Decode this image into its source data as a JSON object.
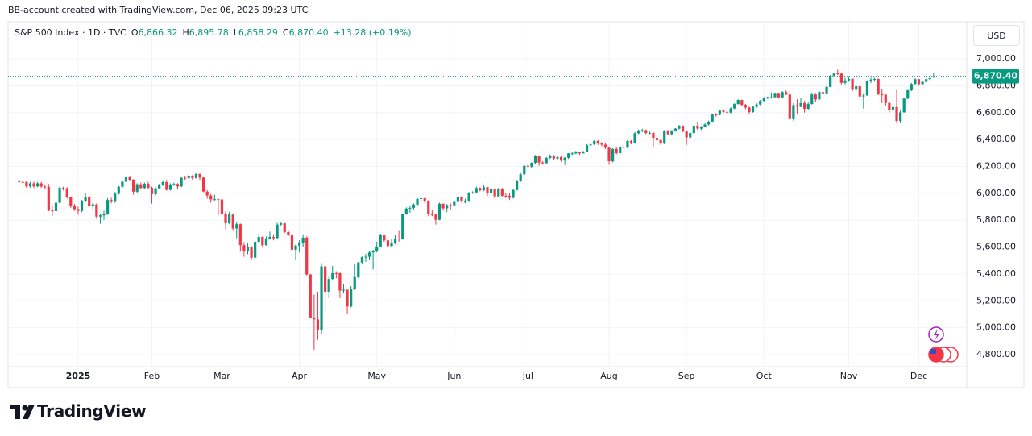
{
  "header": {
    "attribution": "BB-account created with TradingView.com, Dec 06, 2025 09:23 UTC"
  },
  "chart_data": {
    "type": "candlestick",
    "title": "S&P 500 Index · 1D · TVC",
    "ohlc_legend": [
      {
        "label": "O",
        "value": "6,866.32"
      },
      {
        "label": "H",
        "value": "6,895.78"
      },
      {
        "label": "L",
        "value": "6,858.29"
      },
      {
        "label": "C",
        "value": "6,870.40"
      }
    ],
    "change": "+13.28 (+0.19%)",
    "currency": "USD",
    "up_color": "#089981",
    "down_color": "#f23645",
    "grid": true,
    "price_line": {
      "value": 6870.4,
      "label": "6,870.40"
    },
    "ylim": [
      4710,
      7276
    ],
    "yticks": [
      {
        "value": 4800,
        "label": "4,800.00"
      },
      {
        "value": 5000,
        "label": "5,000.00"
      },
      {
        "value": 5200,
        "label": "5,200.00"
      },
      {
        "value": 5400,
        "label": "5,400.00"
      },
      {
        "value": 5600,
        "label": "5,600.00"
      },
      {
        "value": 5800,
        "label": "5,800.00"
      },
      {
        "value": 6000,
        "label": "6,000.00"
      },
      {
        "value": 6200,
        "label": "6,200.00"
      },
      {
        "value": 6400,
        "label": "6,400.00"
      },
      {
        "value": 6600,
        "label": "6,600.00"
      },
      {
        "value": 6800,
        "label": "6,800.00"
      },
      {
        "value": 7000,
        "label": "7,000.00"
      }
    ],
    "xlim": [
      -3,
      257
    ],
    "xticks": [
      {
        "value": 16,
        "label": "2025"
      },
      {
        "value": 36,
        "label": "Feb"
      },
      {
        "value": 55,
        "label": "Mar"
      },
      {
        "value": 76,
        "label": "Apr"
      },
      {
        "value": 97,
        "label": "May"
      },
      {
        "value": 118,
        "label": "Jun"
      },
      {
        "value": 138,
        "label": "Jul"
      },
      {
        "value": 160,
        "label": "Aug"
      },
      {
        "value": 181,
        "label": "Sep"
      },
      {
        "value": 202,
        "label": "Oct"
      },
      {
        "value": 225,
        "label": "Nov"
      },
      {
        "value": 244,
        "label": "Dec"
      }
    ],
    "open": [
      6090,
      6085,
      6084,
      6051,
      6074,
      6051,
      6074,
      6050,
      6047,
      5872,
      5867,
      5930,
      6040,
      6037,
      5970,
      5906,
      5882,
      5869,
      5942,
      5975,
      5909,
      5918,
      5827,
      5836,
      5843,
      5950,
      5937,
      5997,
      6049,
      6086,
      6119,
      6101,
      6012,
      6067,
      6039,
      6071,
      6040,
      5994,
      6037,
      6061,
      6083,
      6026,
      6066,
      6069,
      6051,
      6115,
      6114,
      6129,
      6114,
      6144,
      6117,
      6013,
      5983,
      5955,
      5956,
      5954,
      5849,
      5778,
      5842,
      5738,
      5770,
      5614,
      5572,
      5599,
      5521,
      5639,
      5675,
      5614,
      5662,
      5675,
      5667,
      5767,
      5776,
      5712,
      5693,
      5580,
      5611,
      5633,
      5670,
      5396,
      5074,
      5062,
      4982,
      5456,
      5268,
      5363,
      5406,
      5405,
      5276,
      5282,
      5158,
      5287,
      5376,
      5485,
      5525,
      5528,
      5560,
      5569,
      5604,
      5687,
      5650,
      5607,
      5631,
      5664,
      5660,
      5844,
      5886,
      5892,
      5916,
      5958,
      5963,
      5940,
      5844,
      5842,
      5803,
      5922,
      5888,
      5912,
      5911,
      5936,
      5970,
      5939,
      5939,
      6000,
      6006,
      6039,
      6022,
      6045,
      6001,
      6033,
      5977,
      6033,
      5982,
      5981,
      5967,
      6025,
      6092,
      6141,
      6205,
      6198,
      6227,
      6279,
      6229,
      6225,
      6263,
      6280,
      6259,
      6269,
      6244,
      6264,
      6297,
      6297,
      6305,
      6297,
      6309,
      6358,
      6363,
      6389,
      6370,
      6362,
      6339,
      6238,
      6330,
      6299,
      6345,
      6340,
      6389,
      6374,
      6446,
      6466,
      6469,
      6449,
      6449,
      6412,
      6395,
      6370,
      6467,
      6439,
      6466,
      6481,
      6502,
      6460,
      6415,
      6448,
      6502,
      6481,
      6495,
      6512,
      6532,
      6587,
      6584,
      6615,
      6606,
      6600,
      6631,
      6664,
      6694,
      6657,
      6638,
      6604,
      6644,
      6661,
      6688,
      6711,
      6715,
      6715,
      6740,
      6714,
      6753,
      6735,
      6552,
      6655,
      6644,
      6671,
      6629,
      6664,
      6735,
      6699,
      6753,
      6738,
      6791,
      6875,
      6891,
      6890,
      6822,
      6840,
      6851,
      6771,
      6796,
      6720,
      6728,
      6832,
      6846,
      6850,
      6737,
      6734,
      6672,
      6617,
      6642,
      6538,
      6602,
      6705,
      6766,
      6813,
      6849,
      6812,
      6829,
      6849,
      6866.32
    ],
    "high": [
      6100,
      6096,
      6095,
      6085,
      6086,
      6084,
      6085,
      6066,
      6070,
      5910,
      5940,
      6050,
      6049,
      6045,
      5975,
      5920,
      5900,
      5950,
      6000,
      5990,
      5930,
      5925,
      5850,
      5871,
      5964,
      5966,
      6010,
      6055,
      6100,
      6128,
      6125,
      6105,
      6075,
      6081,
      6080,
      6085,
      6050,
      6045,
      6070,
      6090,
      6100,
      6075,
      6080,
      6075,
      6120,
      6128,
      6140,
      6135,
      6147,
      6147,
      6120,
      6025,
      5995,
      5990,
      5960,
      5986,
      5866,
      5862,
      5845,
      5785,
      5775,
      5636,
      5630,
      5605,
      5646,
      5700,
      5680,
      5680,
      5715,
      5695,
      5780,
      5786,
      5780,
      5720,
      5700,
      5620,
      5650,
      5695,
      5680,
      5400,
      5246,
      5268,
      5481,
      5460,
      5380,
      5460,
      5420,
      5410,
      5328,
      5285,
      5310,
      5470,
      5490,
      5530,
      5550,
      5570,
      5580,
      5640,
      5700,
      5690,
      5660,
      5660,
      5690,
      5720,
      5850,
      5895,
      5907,
      5925,
      5965,
      5970,
      5968,
      5950,
      5880,
      5845,
      5930,
      5925,
      5920,
      5925,
      5945,
      5975,
      5980,
      5960,
      6010,
      6015,
      6050,
      6045,
      6060,
      6048,
      6040,
      6035,
      6040,
      6040,
      6000,
      6000,
      6035,
      6100,
      6150,
      6210,
      6215,
      6230,
      6285,
      6280,
      6240,
      6270,
      6290,
      6285,
      6275,
      6275,
      6270,
      6300,
      6305,
      6315,
      6310,
      6315,
      6365,
      6370,
      6395,
      6395,
      6380,
      6375,
      6345,
      6335,
      6345,
      6355,
      6360,
      6395,
      6395,
      6455,
      6475,
      6480,
      6475,
      6460,
      6455,
      6420,
      6400,
      6470,
      6470,
      6470,
      6485,
      6508,
      6505,
      6465,
      6455,
      6505,
      6532,
      6500,
      6520,
      6540,
      6590,
      6595,
      6620,
      6625,
      6625,
      6640,
      6670,
      6700,
      6697,
      6665,
      6645,
      6650,
      6670,
      6695,
      6715,
      6720,
      6750,
      6745,
      6745,
      6760,
      6765,
      6765,
      6670,
      6700,
      6710,
      6690,
      6680,
      6745,
      6740,
      6760,
      6770,
      6800,
      6880,
      6895,
      6920,
      6895,
      6860,
      6870,
      6855,
      6805,
      6800,
      6740,
      6840,
      6860,
      6860,
      6855,
      6775,
      6735,
      6680,
      6650,
      6770,
      6620,
      6710,
      6770,
      6820,
      6855,
      6850,
      6835,
      6860,
      6870,
      6895.78
    ],
    "low": [
      6075,
      6072,
      6040,
      6042,
      6040,
      6045,
      6040,
      6035,
      5866,
      5832,
      5860,
      5925,
      6020,
      5960,
      5890,
      5870,
      5840,
      5860,
      5935,
      5896,
      5874,
      5810,
      5773,
      5803,
      5840,
      5925,
      5930,
      5990,
      6040,
      6080,
      6090,
      5990,
      6005,
      6030,
      6030,
      6030,
      5923,
      5985,
      6030,
      6055,
      6020,
      6020,
      6055,
      6030,
      6045,
      6100,
      6105,
      6100,
      6110,
      6100,
      6008,
      5960,
      5930,
      5942,
      5837,
      5820,
      5732,
      5770,
      5720,
      5666,
      5565,
      5528,
      5546,
      5505,
      5518,
      5630,
      5597,
      5610,
      5655,
      5650,
      5660,
      5760,
      5705,
      5680,
      5575,
      5500,
      5560,
      5600,
      5390,
      5070,
      4835,
      4910,
      4948,
      5115,
      5220,
      5355,
      5368,
      5220,
      5255,
      5101,
      5150,
      5280,
      5370,
      5470,
      5490,
      5505,
      5433,
      5560,
      5600,
      5640,
      5590,
      5600,
      5620,
      5640,
      5655,
      5840,
      5855,
      5880,
      5905,
      5930,
      5925,
      5830,
      5830,
      5767,
      5800,
      5870,
      5860,
      5875,
      5900,
      5930,
      5930,
      5925,
      5935,
      5995,
      6000,
      6015,
      6015,
      5980,
      5990,
      5960,
      5970,
      5975,
      5965,
      5950,
      5960,
      6020,
      6085,
      6135,
      6185,
      6190,
      6220,
      6205,
      6215,
      6220,
      6255,
      6250,
      6245,
      6235,
      6210,
      6255,
      6285,
      6290,
      6285,
      6295,
      6305,
      6350,
      6360,
      6360,
      6350,
      6330,
      6212,
      6230,
      6290,
      6295,
      6330,
      6335,
      6365,
      6370,
      6440,
      6455,
      6440,
      6440,
      6345,
      6380,
      6360,
      6365,
      6430,
      6430,
      6460,
      6475,
      6455,
      6360,
      6405,
      6440,
      6470,
      6470,
      6490,
      6505,
      6525,
      6570,
      6580,
      6595,
      6590,
      6595,
      6625,
      6660,
      6650,
      6625,
      6590,
      6600,
      6635,
      6655,
      6680,
      6700,
      6705,
      6710,
      6705,
      6710,
      6730,
      6550,
      6540,
      6590,
      6640,
      6600,
      6620,
      6660,
      6680,
      6695,
      6730,
      6735,
      6790,
      6865,
      6880,
      6810,
      6810,
      6830,
      6760,
      6760,
      6710,
      6630,
      6725,
      6820,
      6830,
      6730,
      6670,
      6650,
      6600,
      6610,
      6520,
      6521,
      6600,
      6700,
      6760,
      6805,
      6800,
      6805,
      6825,
      6840,
      6858.29
    ],
    "close": [
      6085,
      6084,
      6051,
      6074,
      6051,
      6074,
      6050,
      6047,
      5872,
      5867,
      5930,
      6040,
      6037,
      5970,
      5906,
      5882,
      5869,
      5942,
      5975,
      5909,
      5918,
      5827,
      5836,
      5843,
      5950,
      5937,
      5997,
      6049,
      6086,
      6119,
      6101,
      6012,
      6067,
      6039,
      6071,
      6040,
      5994,
      6037,
      6061,
      6083,
      6026,
      6066,
      6069,
      6051,
      6115,
      6114,
      6129,
      6114,
      6144,
      6117,
      6013,
      5983,
      5955,
      5956,
      5954,
      5849,
      5778,
      5842,
      5738,
      5770,
      5614,
      5572,
      5599,
      5521,
      5639,
      5675,
      5614,
      5662,
      5675,
      5667,
      5767,
      5776,
      5712,
      5693,
      5580,
      5611,
      5633,
      5670,
      5396,
      5074,
      5062,
      4982,
      5456,
      5268,
      5363,
      5406,
      5405,
      5276,
      5282,
      5158,
      5287,
      5376,
      5485,
      5525,
      5528,
      5560,
      5569,
      5604,
      5687,
      5650,
      5607,
      5631,
      5664,
      5660,
      5844,
      5886,
      5892,
      5916,
      5958,
      5963,
      5940,
      5844,
      5842,
      5803,
      5922,
      5888,
      5912,
      5911,
      5936,
      5970,
      5939,
      5939,
      6000,
      6006,
      6039,
      6022,
      6045,
      6001,
      6033,
      5977,
      6033,
      5982,
      5981,
      5967,
      6025,
      6092,
      6141,
      6205,
      6198,
      6227,
      6279,
      6229,
      6225,
      6263,
      6280,
      6259,
      6269,
      6244,
      6264,
      6297,
      6297,
      6305,
      6297,
      6309,
      6358,
      6363,
      6389,
      6370,
      6362,
      6339,
      6238,
      6330,
      6299,
      6345,
      6340,
      6389,
      6374,
      6446,
      6466,
      6469,
      6449,
      6449,
      6412,
      6395,
      6370,
      6467,
      6439,
      6466,
      6481,
      6502,
      6460,
      6415,
      6448,
      6502,
      6481,
      6495,
      6512,
      6532,
      6587,
      6584,
      6615,
      6606,
      6600,
      6631,
      6664,
      6694,
      6657,
      6638,
      6604,
      6644,
      6661,
      6688,
      6711,
      6715,
      6715,
      6740,
      6714,
      6753,
      6735,
      6552,
      6655,
      6644,
      6671,
      6629,
      6664,
      6735,
      6699,
      6753,
      6738,
      6791,
      6875,
      6891,
      6890,
      6822,
      6840,
      6851,
      6771,
      6796,
      6720,
      6728,
      6832,
      6846,
      6850,
      6737,
      6734,
      6672,
      6617,
      6642,
      6538,
      6602,
      6705,
      6766,
      6813,
      6849,
      6812,
      6829,
      6849,
      6857,
      6870.4
    ]
  },
  "footer": {
    "logo": "TradingView"
  }
}
